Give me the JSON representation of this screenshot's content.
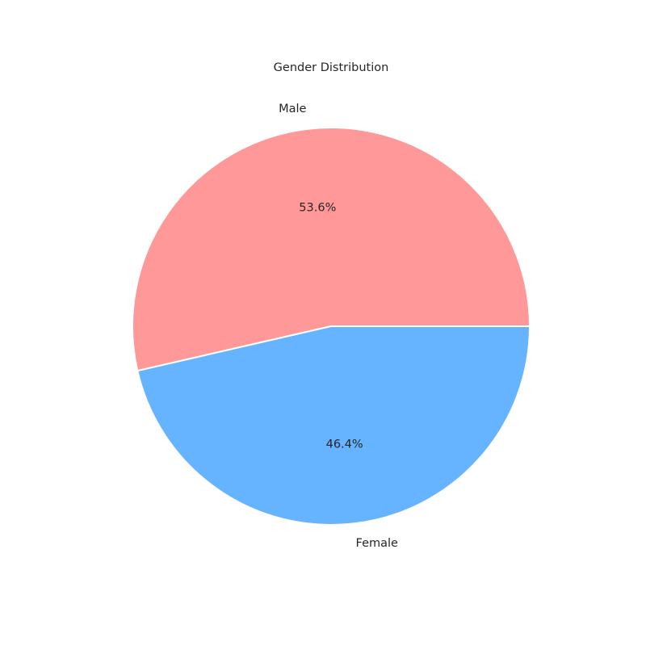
{
  "chart_data": {
    "type": "pie",
    "title": "Gender Distribution",
    "categories": [
      "Male",
      "Female"
    ],
    "values": [
      53.6,
      46.4
    ],
    "value_labels": [
      "53.6%",
      "46.4%"
    ],
    "colors": [
      "#ff9999",
      "#66b3ff"
    ],
    "start_angle_deg": 0,
    "direction": "counterclockwise"
  }
}
